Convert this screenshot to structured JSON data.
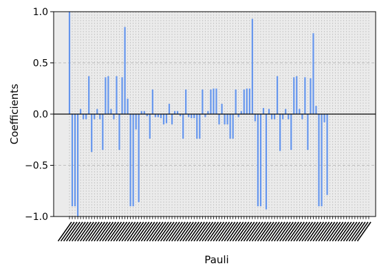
{
  "chart_data": {
    "type": "bar",
    "xlabel": "Pauli",
    "ylabel": "Coefficients",
    "ylim": [
      -1.0,
      1.0
    ],
    "yticks": [
      {
        "value": 1.0,
        "label": "1.0"
      },
      {
        "value": 0.5,
        "label": "0.5"
      },
      {
        "value": 0.0,
        "label": "0.0"
      },
      {
        "value": -0.5,
        "label": "−0.5"
      },
      {
        "value": -1.0,
        "label": "−1.0"
      }
    ],
    "grid": true,
    "legend": "none",
    "bar_color": "#6495ED",
    "plot_background": "#EBEBEB",
    "grid_color": "#B0B0B0",
    "category_count": 109,
    "category_label_note": "Pauli string labels are drawn rotated and overlap so heavily that their text is illegible",
    "values": [
      1.0,
      -0.9,
      -0.9,
      -1.0,
      0.05,
      -0.05,
      -0.05,
      0.37,
      -0.37,
      -0.05,
      0.05,
      -0.05,
      -0.35,
      0.36,
      0.37,
      0.05,
      -0.05,
      0.37,
      -0.35,
      0.36,
      0.85,
      0.15,
      -0.9,
      -0.9,
      -0.15,
      -0.86,
      0.03,
      0.03,
      -0.02,
      -0.24,
      0.24,
      -0.03,
      -0.03,
      -0.04,
      -0.1,
      -0.09,
      0.1,
      -0.1,
      0.03,
      0.03,
      -0.02,
      -0.24,
      0.24,
      -0.03,
      -0.04,
      -0.04,
      -0.24,
      -0.24,
      0.24,
      -0.03,
      0.03,
      0.24,
      0.25,
      0.25,
      -0.1,
      0.1,
      -0.1,
      -0.1,
      -0.24,
      -0.24,
      0.24,
      -0.03,
      0.03,
      0.24,
      0.25,
      0.25,
      0.93,
      -0.07,
      -0.9,
      -0.9,
      0.06,
      -0.93,
      0.05,
      -0.05,
      -0.05,
      0.37,
      -0.36,
      -0.05,
      0.05,
      -0.05,
      -0.35,
      0.36,
      0.37,
      0.05,
      -0.05,
      0.36,
      -0.35,
      0.35,
      0.79,
      0.08,
      -0.9,
      -0.9,
      -0.08,
      -0.79,
      0.0,
      0.0,
      0.0,
      0.0,
      0.0,
      0.0,
      0.0,
      0.0,
      0.0,
      0.0,
      0.0,
      0.0,
      0.0,
      0.0,
      0.0
    ]
  }
}
